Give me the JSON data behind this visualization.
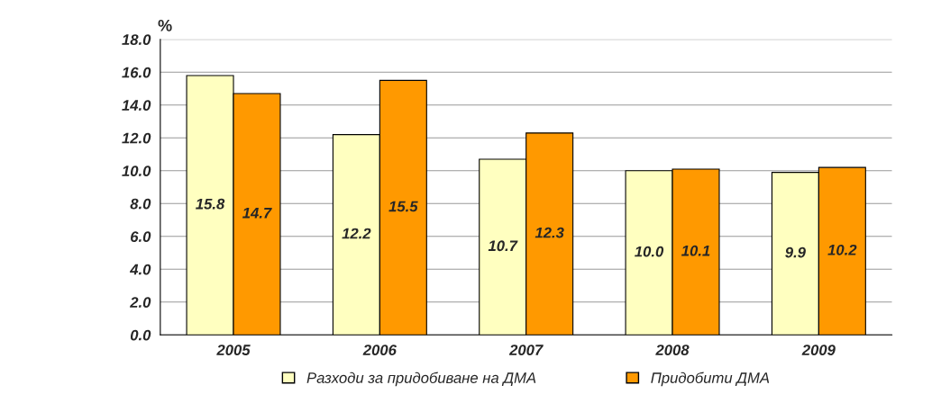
{
  "chart_data": {
    "type": "bar",
    "ylabel": "%",
    "categories": [
      "2005",
      "2006",
      "2007",
      "2008",
      "2009"
    ],
    "series": [
      {
        "name": "Разходи за придобиване на ДМА",
        "color": "#ffffc0",
        "values": [
          15.8,
          12.2,
          10.7,
          10.0,
          9.9
        ],
        "value_labels": [
          "15.8",
          "12.2",
          "10.7",
          "10.0",
          "9.9"
        ]
      },
      {
        "name": "Придобити ДМА",
        "color": "#ff9900",
        "values": [
          14.7,
          15.5,
          12.3,
          10.1,
          10.2
        ],
        "value_labels": [
          "14.7",
          "15.5",
          "12.3",
          "10.1",
          "10.2"
        ]
      }
    ],
    "ylim": [
      0,
      18
    ],
    "yticks": [
      {
        "value": 0,
        "label": "0.0"
      },
      {
        "value": 2,
        "label": "2.0"
      },
      {
        "value": 4,
        "label": "4.0"
      },
      {
        "value": 6,
        "label": "6.0"
      },
      {
        "value": 8,
        "label": "8.0"
      },
      {
        "value": 10,
        "label": "10.0"
      },
      {
        "value": 12,
        "label": "12.0"
      },
      {
        "value": 14,
        "label": "14.0"
      },
      {
        "value": 16,
        "label": "16.0"
      },
      {
        "value": 18,
        "label": "18.0"
      }
    ],
    "grid": "y",
    "legend": "bottom"
  }
}
